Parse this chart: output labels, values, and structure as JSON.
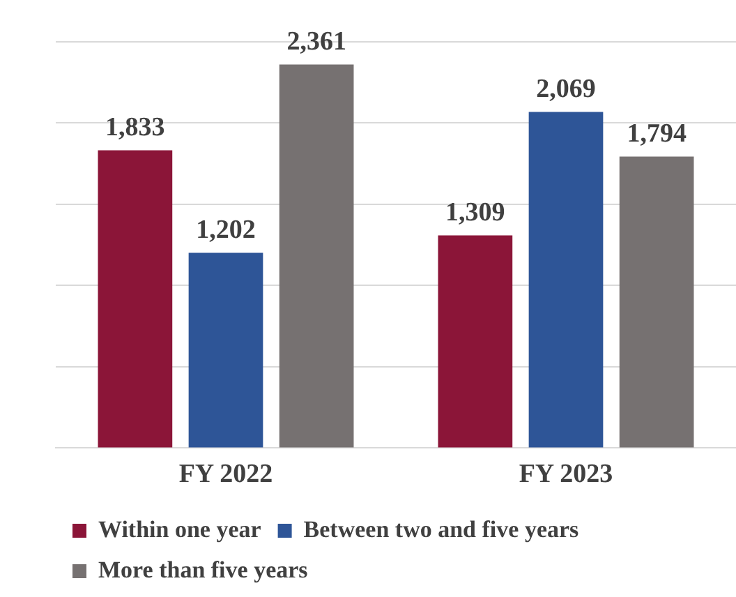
{
  "chart_data": {
    "type": "bar",
    "categories": [
      "FY 2022",
      "FY 2023"
    ],
    "series": [
      {
        "name": "Within one year",
        "color": "#8b1538",
        "values": [
          1833,
          1309
        ],
        "value_labels": [
          "1,833",
          "1,309"
        ]
      },
      {
        "name": "Between two and five years",
        "color": "#2e5597",
        "values": [
          1202,
          2069
        ],
        "value_labels": [
          "1,202",
          "2,069"
        ]
      },
      {
        "name": "More than five years",
        "color": "#767171",
        "values": [
          2361,
          1794
        ],
        "value_labels": [
          "2,361",
          "1,794"
        ]
      }
    ],
    "tick_labels": "x",
    "grid": "y",
    "legend": "bottom"
  }
}
